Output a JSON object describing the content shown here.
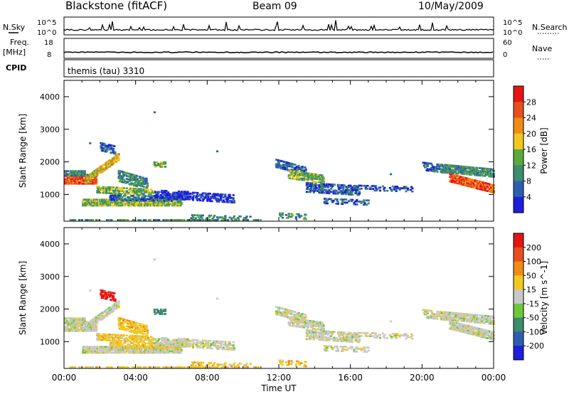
{
  "header": {
    "station": "Blackstone (fitACF)",
    "beam": "Beam 09",
    "date": "10/May/2009"
  },
  "top_labels": {
    "nsky": "N.Sky",
    "nsearch": "N.Search",
    "freq": "Freq.",
    "freq_unit": "[MHz]",
    "nave": "Nave",
    "cpid": "CPID",
    "cpid_value": "themis (tau) 3310",
    "tick_1e5": "10^5",
    "tick_1e0": "10^0",
    "freq_ticks": [
      "18",
      "8"
    ],
    "nave_ticks": [
      "60",
      "0"
    ]
  },
  "chart_data": [
    {
      "type": "heatmap",
      "name": "Power",
      "ylabel": "Slant Range [km]",
      "xlabel": "Time UT",
      "ylim": [
        180,
        4500
      ],
      "xlim": [
        0,
        24
      ],
      "yticks": [
        1000,
        2000,
        3000,
        4000
      ],
      "xticks": [
        "00:00",
        "04:00",
        "08:00",
        "12:00",
        "16:00",
        "20:00",
        "00:00"
      ],
      "colorbar": {
        "label": "Power [dB]",
        "ticks": [
          4,
          8,
          12,
          16,
          20,
          24,
          28
        ],
        "colors": [
          "#1e1edc",
          "#2d5fb0",
          "#3c8c6e",
          "#5aaa3c",
          "#f0c81e",
          "#f08c14",
          "#e6501e",
          "#e61414"
        ]
      }
    },
    {
      "type": "heatmap",
      "name": "Velocity",
      "ylabel": "Slant Range [km]",
      "xlabel": "Time UT",
      "ylim": [
        180,
        4500
      ],
      "xlim": [
        0,
        24
      ],
      "yticks": [
        1000,
        2000,
        3000,
        4000
      ],
      "xticks": [
        "00:00",
        "04:00",
        "08:00",
        "12:00",
        "16:00",
        "20:00",
        "00:00"
      ],
      "colorbar": {
        "label": "Velocity [m s^-1]",
        "ticks": [
          200,
          100,
          50,
          15,
          -15,
          -50,
          -100,
          -200
        ],
        "colors": [
          "#1e1edc",
          "#2d5fb0",
          "#3c8c6e",
          "#6ec83c",
          "#c8c8c8",
          "#f0c81e",
          "#f08c14",
          "#e6501e",
          "#e61414"
        ]
      }
    }
  ]
}
